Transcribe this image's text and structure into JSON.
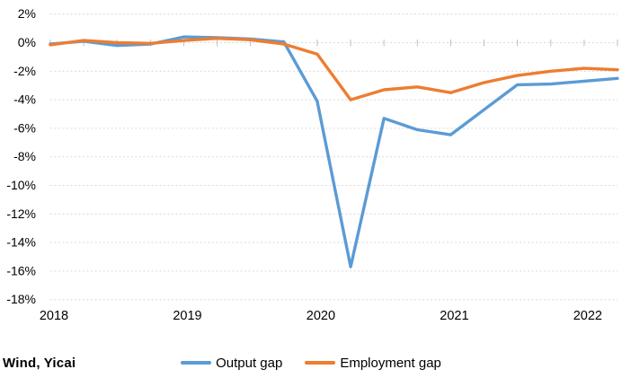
{
  "source": {
    "label": "Wind, Yicai"
  },
  "colors": {
    "output_gap": "#5B9BD5",
    "employment_gap": "#ED7D31",
    "gridline": "#D9D9D9",
    "axis_tick": "#BFBFBF",
    "text": "#000000",
    "background": "#FFFFFF"
  },
  "chart_data": {
    "type": "line",
    "title": "",
    "xlabel": "",
    "ylabel": "",
    "x": [
      "2018Q1",
      "2018Q2",
      "2018Q3",
      "2018Q4",
      "2019Q1",
      "2019Q2",
      "2019Q3",
      "2019Q4",
      "2020Q1",
      "2020Q2",
      "2020Q3",
      "2020Q4",
      "2021Q1",
      "2021Q2",
      "2021Q3",
      "2021Q4",
      "2022Q1",
      "2022Q2"
    ],
    "series": [
      {
        "name": "Output gap",
        "color": "#5B9BD5",
        "values": [
          -0.1,
          0.1,
          -0.2,
          -0.1,
          0.4,
          0.35,
          0.25,
          0.05,
          -4.1,
          -15.7,
          -5.3,
          -6.1,
          -6.45,
          -4.7,
          -2.95,
          -2.9,
          -2.7,
          -2.5
        ]
      },
      {
        "name": "Employment gap",
        "color": "#ED7D31",
        "values": [
          -0.15,
          0.15,
          0.0,
          -0.05,
          0.15,
          0.3,
          0.2,
          -0.1,
          -0.8,
          -4.0,
          -3.3,
          -3.1,
          -3.5,
          -2.8,
          -2.3,
          -2.0,
          -1.8,
          -1.9
        ]
      }
    ],
    "ylim": [
      -18,
      2
    ],
    "ytick_values": [
      2,
      0,
      -2,
      -4,
      -6,
      -8,
      -10,
      -12,
      -14,
      -16,
      -18
    ],
    "ytick_labels": [
      "2%",
      "0%",
      "-2%",
      "-4%",
      "-6%",
      "-8%",
      "-10%",
      "-12%",
      "-14%",
      "-16%",
      "-18%"
    ],
    "xtick_labels": [
      "2018",
      "2019",
      "2020",
      "2021",
      "2022"
    ],
    "xtick_point_indices": [
      0,
      4,
      8,
      12,
      16
    ],
    "grid": true,
    "gridline_style": "dashed",
    "quarter_ticks_on_zero_line": true,
    "legend_position": "bottom"
  },
  "legend": {
    "items": [
      {
        "label": "Output gap",
        "color": "#5B9BD5"
      },
      {
        "label": "Employment gap",
        "color": "#ED7D31"
      }
    ]
  }
}
